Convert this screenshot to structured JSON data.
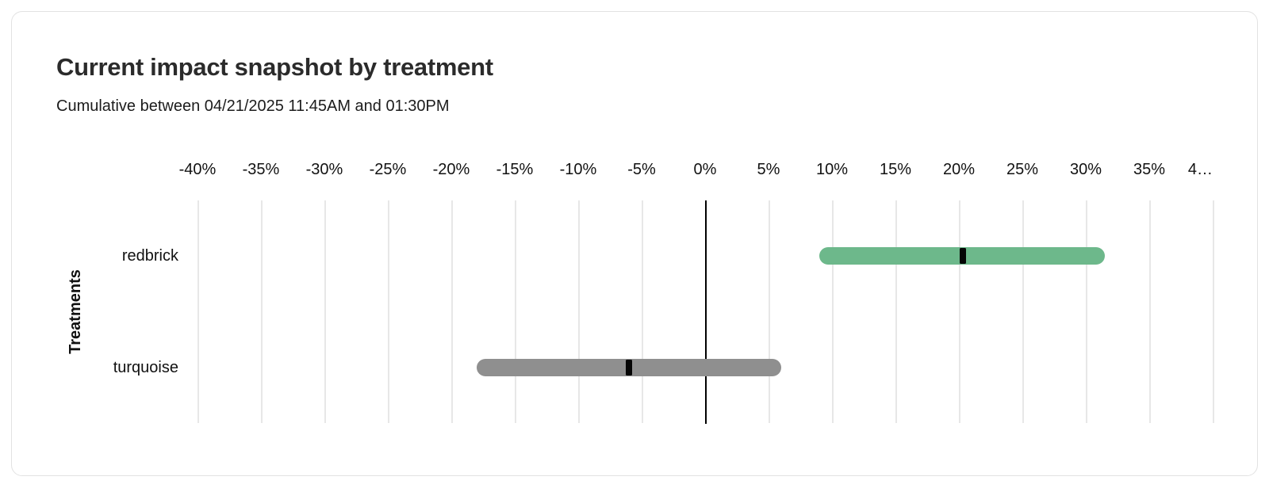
{
  "header": {
    "title": "Current impact snapshot by treatment",
    "subtitle": "Cumulative between 04/21/2025 11:45AM and 01:30PM"
  },
  "chart_data": {
    "type": "bar",
    "variant": "horizontal-interval-bars-with-point-estimate",
    "title": "Current impact snapshot by treatment",
    "xlabel": "",
    "ylabel": "Treatments",
    "categories": [
      "redbrick",
      "turquoise"
    ],
    "series": [
      {
        "name": "redbrick",
        "estimate": 20.3,
        "low": 9.0,
        "high": 31.5,
        "color": "#6db88b"
      },
      {
        "name": "turquoise",
        "estimate": -6.0,
        "low": -18.0,
        "high": 6.0,
        "color": "#8f8f8f"
      }
    ],
    "unit": "%",
    "xlim": [
      -40,
      40
    ],
    "x_tick_step": 5,
    "x_tick_labels": [
      "-40%",
      "-35%",
      "-30%",
      "-25%",
      "-20%",
      "-15%",
      "-10%",
      "-5%",
      "0%",
      "5%",
      "10%",
      "15%",
      "20%",
      "25%",
      "30%",
      "35%",
      "4…"
    ],
    "grid": true,
    "zero_line": true,
    "legend": "none"
  },
  "colors": {
    "card_border": "#e2e2e2",
    "gridline": "#e7e7e7",
    "zero_line": "#000000",
    "marker": "#050505",
    "bar_redbrick": "#6db88b",
    "bar_turquoise": "#8f8f8f",
    "title_text": "#2b2b2b"
  }
}
